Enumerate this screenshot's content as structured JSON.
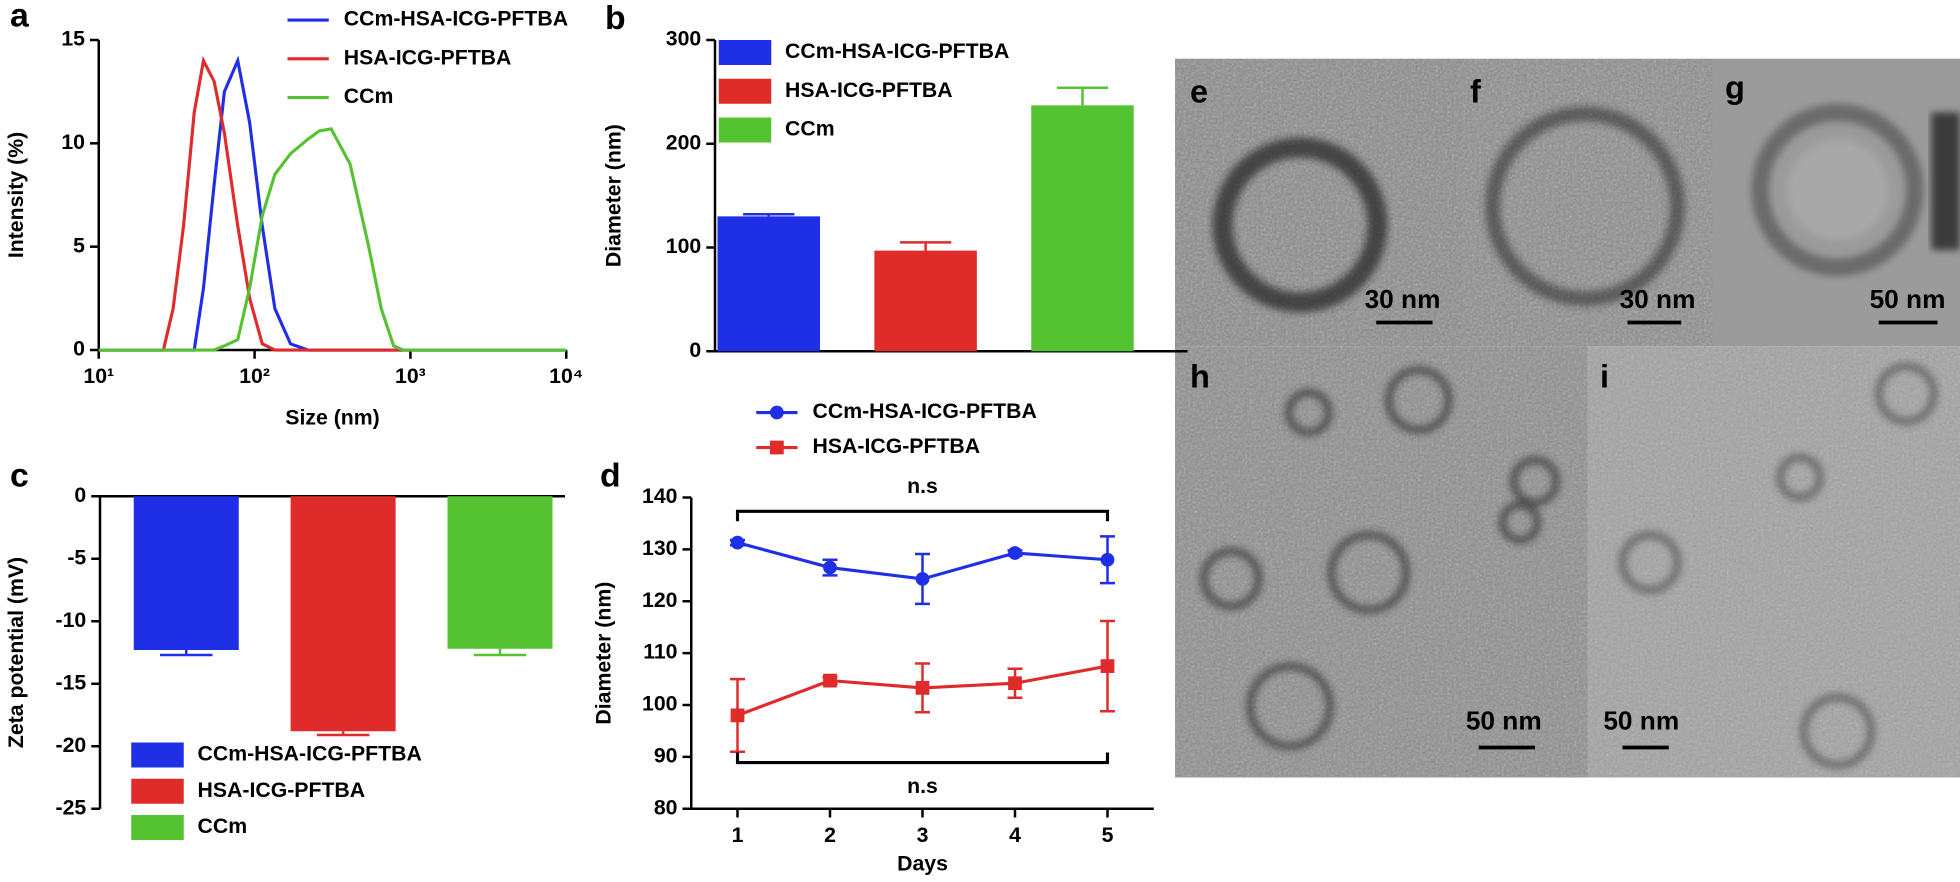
{
  "chart_data": [
    {
      "panel": "a",
      "type": "line",
      "xlabel": "Size (nm)",
      "ylabel": "Intensity (%)",
      "xlog": true,
      "xlim": [
        10,
        10000
      ],
      "xticks": [
        {
          "value": 10,
          "label": "10¹"
        },
        {
          "value": 100,
          "label": "10²"
        },
        {
          "value": 1000,
          "label": "10³"
        },
        {
          "value": 10000,
          "label": "10⁴"
        }
      ],
      "ylim": [
        0,
        15
      ],
      "yticks": [
        0,
        5,
        10,
        15
      ],
      "x": [
        10,
        26,
        30,
        35,
        41,
        47,
        55,
        64,
        78,
        93,
        112,
        135,
        170,
        220,
        260,
        310,
        410,
        540,
        650,
        780,
        900,
        10000
      ],
      "series": [
        {
          "name": "CCm-HSA-ICG-PFTBA",
          "color": "#1f2fe6",
          "values": [
            0,
            0,
            0,
            0,
            0,
            3,
            8,
            12.5,
            14,
            11,
            6,
            2,
            0.3,
            0,
            0,
            0,
            0,
            0,
            0,
            0,
            0,
            0
          ]
        },
        {
          "name": "HSA-ICG-PFTBA",
          "color": "#e02b2b",
          "values": [
            0,
            0,
            2,
            6,
            11.5,
            14,
            13,
            10.5,
            6,
            2.5,
            0.3,
            0,
            0,
            0,
            0,
            0,
            0,
            0,
            0,
            0,
            0,
            0
          ]
        },
        {
          "name": "CCm",
          "color": "#55c232",
          "values": [
            0,
            0,
            0,
            0,
            0,
            0,
            0,
            0.2,
            0.5,
            3,
            6.5,
            8.5,
            9.5,
            10.2,
            10.6,
            10.7,
            9,
            5,
            2,
            0.2,
            0,
            0
          ]
        }
      ]
    },
    {
      "panel": "b",
      "type": "bar",
      "ylabel": "Diameter (nm)",
      "ylim": [
        0,
        300
      ],
      "yticks": [
        0,
        100,
        200,
        300
      ],
      "series": [
        {
          "name": "CCm-HSA-ICG-PFTBA",
          "color": "#1f2fe6",
          "values": [
            130
          ],
          "errors": [
            2
          ]
        },
        {
          "name": "HSA-ICG-PFTBA",
          "color": "#e02b2b",
          "values": [
            97
          ],
          "errors": [
            8
          ]
        },
        {
          "name": "CCm",
          "color": "#55c232",
          "values": [
            237
          ],
          "errors": [
            17
          ]
        }
      ]
    },
    {
      "panel": "c",
      "type": "bar",
      "ylabel": "Zeta potential (mV)",
      "ylim": [
        -25,
        0
      ],
      "yticks": [
        -25,
        -20,
        -15,
        -10,
        -5,
        0
      ],
      "series": [
        {
          "name": "CCm-HSA-ICG-PFTBA",
          "color": "#1f2fe6",
          "values": [
            -12.3
          ],
          "errors": [
            0.4
          ]
        },
        {
          "name": "HSA-ICG-PFTBA",
          "color": "#e02b2b",
          "values": [
            -18.8
          ],
          "errors": [
            0.3
          ]
        },
        {
          "name": "CCm",
          "color": "#55c232",
          "values": [
            -12.2
          ],
          "errors": [
            0.5
          ]
        }
      ]
    },
    {
      "panel": "d",
      "type": "line",
      "xlabel": "Days",
      "ylabel": "Diameter (nm)",
      "xlim": [
        0.5,
        5.5
      ],
      "xticks": [
        1,
        2,
        3,
        4,
        5
      ],
      "ylim": [
        80,
        140
      ],
      "yticks": [
        80,
        90,
        100,
        110,
        120,
        130,
        140
      ],
      "x": [
        1,
        2,
        3,
        4,
        5
      ],
      "series": [
        {
          "name": "CCm-HSA-ICG-PFTBA",
          "color": "#1f2fe6",
          "marker": "circle",
          "values": [
            131.3,
            126.5,
            124.3,
            129.3,
            128
          ],
          "errors": [
            0.5,
            1.5,
            4.8,
            0.5,
            4.5
          ]
        },
        {
          "name": "HSA-ICG-PFTBA",
          "color": "#e02b2b",
          "marker": "square",
          "values": [
            98,
            104.7,
            103.3,
            104.2,
            107.5
          ],
          "errors": [
            7,
            0.7,
            4.7,
            2.8,
            8.7
          ]
        }
      ],
      "annotations": [
        "n.s",
        "n.s"
      ]
    }
  ],
  "images": [
    {
      "panel": "e",
      "scale_bar": "30 nm"
    },
    {
      "panel": "f",
      "scale_bar": "30 nm"
    },
    {
      "panel": "g",
      "scale_bar": "50 nm"
    },
    {
      "panel": "h",
      "scale_bar": "50 nm"
    },
    {
      "panel": "i",
      "scale_bar": "50 nm"
    }
  ]
}
